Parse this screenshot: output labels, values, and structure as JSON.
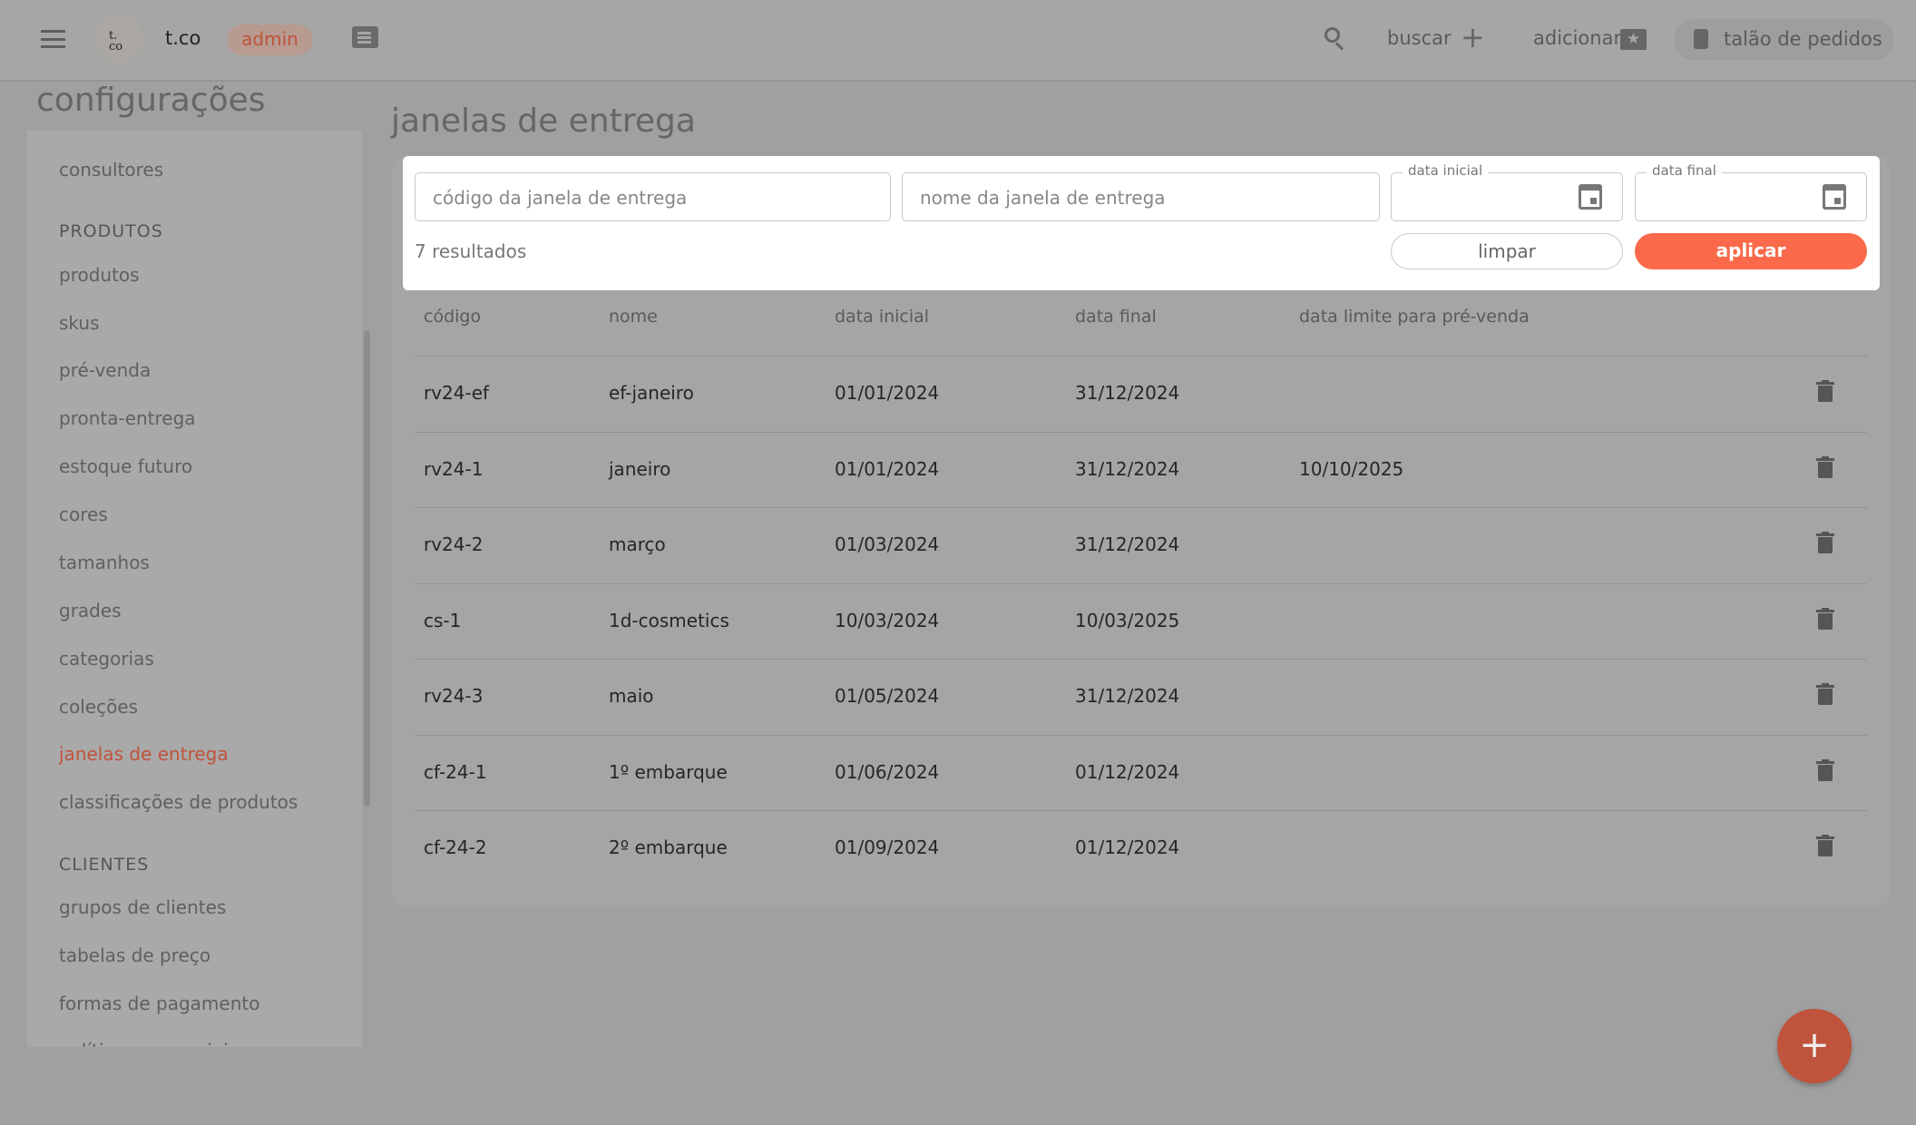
{
  "header": {
    "brand": "t.co",
    "logo_text": "t.\nco",
    "role_badge": "admin",
    "search_label": "buscar",
    "add_label": "adicionar",
    "order_pad_label": "talão de pedidos"
  },
  "sidebar": {
    "title": "configurações",
    "items": [
      {
        "type": "item",
        "label": "consultores"
      },
      {
        "type": "heading",
        "label": "PRODUTOS"
      },
      {
        "type": "item",
        "label": "produtos"
      },
      {
        "type": "item",
        "label": "skus"
      },
      {
        "type": "item",
        "label": "pré-venda"
      },
      {
        "type": "item",
        "label": "pronta-entrega"
      },
      {
        "type": "item",
        "label": "estoque futuro"
      },
      {
        "type": "item",
        "label": "cores"
      },
      {
        "type": "item",
        "label": "tamanhos"
      },
      {
        "type": "item",
        "label": "grades"
      },
      {
        "type": "item",
        "label": "categorias"
      },
      {
        "type": "item",
        "label": "coleções"
      },
      {
        "type": "item",
        "label": "janelas de entrega",
        "active": true
      },
      {
        "type": "item",
        "label": "classificações de produtos"
      },
      {
        "type": "heading",
        "label": "CLIENTES"
      },
      {
        "type": "item",
        "label": "grupos de clientes"
      },
      {
        "type": "item",
        "label": "tabelas de preço"
      },
      {
        "type": "item",
        "label": "formas de pagamento"
      },
      {
        "type": "item",
        "label": "políticas comerciais"
      }
    ]
  },
  "main": {
    "title": "janelas de entrega",
    "filters": {
      "code_placeholder": "código da janela de entrega",
      "name_placeholder": "nome da janela de entrega",
      "start_label": "data inicial",
      "end_label": "data final",
      "results": "7 resultados",
      "clear_label": "limpar",
      "apply_label": "aplicar"
    },
    "table": {
      "columns": [
        "código",
        "nome",
        "data inicial",
        "data final",
        "data limite para pré-venda"
      ],
      "rows": [
        [
          "rv24-ef",
          "ef-janeiro",
          "01/01/2024",
          "31/12/2024",
          ""
        ],
        [
          "rv24-1",
          "janeiro",
          "01/01/2024",
          "31/12/2024",
          "10/10/2025"
        ],
        [
          "rv24-2",
          "março",
          "01/03/2024",
          "31/12/2024",
          ""
        ],
        [
          "cs-1",
          "1d-cosmetics",
          "10/03/2024",
          "10/03/2025",
          ""
        ],
        [
          "rv24-3",
          "maio",
          "01/05/2024",
          "31/12/2024",
          ""
        ],
        [
          "cf-24-1",
          "1º embarque",
          "01/06/2024",
          "01/12/2024",
          ""
        ],
        [
          "cf-24-2",
          "2º embarque",
          "01/09/2024",
          "01/12/2024",
          ""
        ]
      ]
    }
  },
  "fab": {
    "label": "+"
  },
  "colors": {
    "accent": "#fa6a4a",
    "active": "#c0533b",
    "backdrop": "#a0a0a0"
  }
}
